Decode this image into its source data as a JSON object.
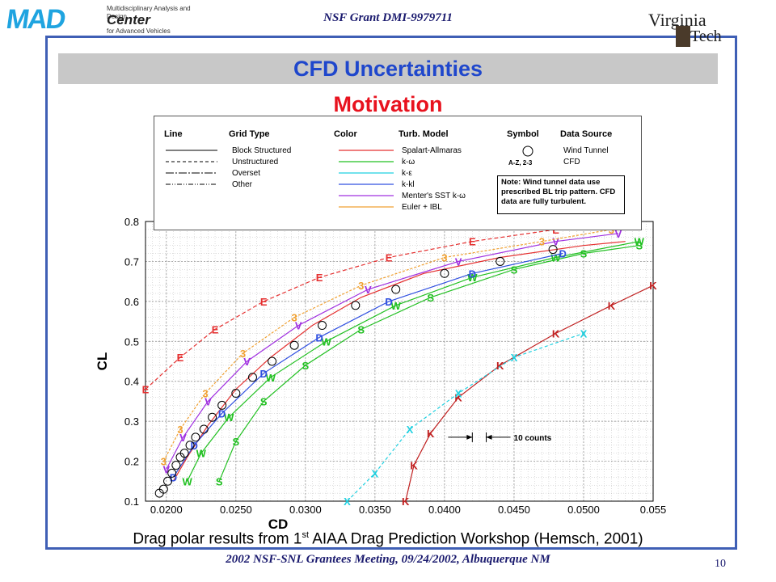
{
  "header": {
    "logo_left": {
      "big": "MAD",
      "line1": "Multidisciplinary Analysis and Design",
      "center": "Center",
      "line3": "for Advanced Vehicles"
    },
    "grant": "NSF Grant DMI-9979711",
    "logo_right": {
      "word1": "Virginia",
      "word2": "Tech"
    }
  },
  "slide": {
    "title": "CFD Uncertainties",
    "subtitle": "Motivation",
    "caption_pre": "Drag polar results from 1",
    "caption_sup": "st",
    "caption_post": " AIAA Drag Prediction Workshop (Hemsch, 2001)",
    "footer": "2002 NSF-SNL Grantees Meeting, 09/24/2002, Albuquerque NM",
    "page_number": "10"
  },
  "legend": {
    "headers": {
      "line": "Line",
      "grid": "Grid Type",
      "color": "Color",
      "turb": "Turb. Model",
      "symbol": "Symbol",
      "source": "Data Source"
    },
    "grid_types": [
      "Block Structured",
      "Unstructured",
      "Overset",
      "Other"
    ],
    "turb_models": [
      {
        "label": "Spalart-Allmaras",
        "color": "#e53030"
      },
      {
        "label": "k-ω",
        "color": "#22c022"
      },
      {
        "label": "k-ε",
        "color": "#1fd0e0"
      },
      {
        "label": "k-kl",
        "color": "#3050e0"
      },
      {
        "label": "Menter's SST k-ω",
        "color": "#a030e0"
      },
      {
        "label": "Euler + IBL",
        "color": "#f0a030"
      }
    ],
    "symbol_label": "A-Z, 2-3",
    "sources": [
      "Wind Tunnel",
      "CFD"
    ],
    "note": "Note:  Wind tunnel data use prescribed BL trip pattern. CFD data are fully turbulent."
  },
  "chart_data": {
    "type": "line",
    "title": "",
    "xlabel": "CD",
    "ylabel": "CL",
    "xlim": [
      0.0185,
      0.055
    ],
    "ylim": [
      0.1,
      0.8
    ],
    "xticks": [
      "0.0200",
      "0.0250",
      "0.0300",
      "0.0350",
      "0.0400",
      "0.0450",
      "0.0500",
      "0.055"
    ],
    "yticks": [
      "0.1",
      "0.2",
      "0.3",
      "0.4",
      "0.5",
      "0.6",
      "0.7",
      "0.8"
    ],
    "grid": true,
    "annotation": "10 counts",
    "wind_tunnel": {
      "marker": "circle",
      "x": [
        0.0195,
        0.0198,
        0.0201,
        0.0204,
        0.0207,
        0.021,
        0.0213,
        0.0217,
        0.0221,
        0.0227,
        0.0233,
        0.024,
        0.025,
        0.0262,
        0.0276,
        0.0292,
        0.0312,
        0.0336,
        0.0365,
        0.04,
        0.044,
        0.0478
      ],
      "y": [
        0.12,
        0.13,
        0.15,
        0.17,
        0.19,
        0.21,
        0.22,
        0.24,
        0.26,
        0.28,
        0.31,
        0.34,
        0.37,
        0.41,
        0.45,
        0.49,
        0.54,
        0.59,
        0.63,
        0.67,
        0.7,
        0.73
      ]
    },
    "series": [
      {
        "color": "#e53030",
        "dash": "",
        "label": "",
        "x": [
          0.0205,
          0.0215,
          0.023,
          0.025,
          0.0275,
          0.0305,
          0.034,
          0.0385,
          0.044,
          0.05,
          0.053
        ],
        "y": [
          0.15,
          0.21,
          0.29,
          0.38,
          0.46,
          0.54,
          0.61,
          0.67,
          0.71,
          0.74,
          0.75
        ]
      },
      {
        "color": "#e53030",
        "dash": "5,3",
        "label": "E",
        "x": [
          0.0185,
          0.021,
          0.0235,
          0.027,
          0.031,
          0.036,
          0.042,
          0.048,
          0.053
        ],
        "y": [
          0.38,
          0.46,
          0.53,
          0.6,
          0.66,
          0.71,
          0.75,
          0.78,
          0.8
        ]
      },
      {
        "color": "#22c022",
        "dash": "",
        "label": "S",
        "x": [
          0.0238,
          0.025,
          0.027,
          0.03,
          0.034,
          0.039,
          0.045,
          0.05,
          0.054
        ],
        "y": [
          0.15,
          0.25,
          0.35,
          0.44,
          0.53,
          0.61,
          0.68,
          0.72,
          0.74
        ]
      },
      {
        "color": "#22c022",
        "dash": "",
        "label": "W",
        "x": [
          0.0215,
          0.0225,
          0.0245,
          0.0275,
          0.0315,
          0.0365,
          0.042,
          0.048,
          0.054
        ],
        "y": [
          0.15,
          0.22,
          0.31,
          0.41,
          0.5,
          0.59,
          0.66,
          0.71,
          0.75
        ]
      },
      {
        "color": "#3050e0",
        "dash": "",
        "label": "D",
        "x": [
          0.0205,
          0.022,
          0.024,
          0.027,
          0.031,
          0.036,
          0.042,
          0.0485
        ],
        "y": [
          0.16,
          0.24,
          0.32,
          0.42,
          0.51,
          0.6,
          0.67,
          0.72
        ]
      },
      {
        "color": "#a030e0",
        "dash": "",
        "label": "V",
        "x": [
          0.02,
          0.0212,
          0.023,
          0.0258,
          0.0295,
          0.0345,
          0.041,
          0.048,
          0.0525
        ],
        "y": [
          0.18,
          0.26,
          0.35,
          0.45,
          0.54,
          0.63,
          0.7,
          0.75,
          0.77
        ]
      },
      {
        "color": "#f0a030",
        "dash": "3,2",
        "label": "3",
        "x": [
          0.0198,
          0.021,
          0.0228,
          0.0255,
          0.0292,
          0.034,
          0.04,
          0.047,
          0.052
        ],
        "y": [
          0.2,
          0.28,
          0.37,
          0.47,
          0.56,
          0.64,
          0.71,
          0.75,
          0.78
        ]
      },
      {
        "color": "#c02020",
        "dash": "",
        "label": "K",
        "x": [
          0.0372,
          0.0378,
          0.039,
          0.041,
          0.044,
          0.048,
          0.052,
          0.055
        ],
        "y": [
          0.1,
          0.19,
          0.27,
          0.36,
          0.44,
          0.52,
          0.59,
          0.64
        ]
      },
      {
        "color": "#1fd0e0",
        "dash": "4,3",
        "label": "X",
        "x": [
          0.033,
          0.035,
          0.0375,
          0.041,
          0.045,
          0.05
        ],
        "y": [
          0.1,
          0.17,
          0.28,
          0.37,
          0.46,
          0.52
        ]
      }
    ]
  }
}
